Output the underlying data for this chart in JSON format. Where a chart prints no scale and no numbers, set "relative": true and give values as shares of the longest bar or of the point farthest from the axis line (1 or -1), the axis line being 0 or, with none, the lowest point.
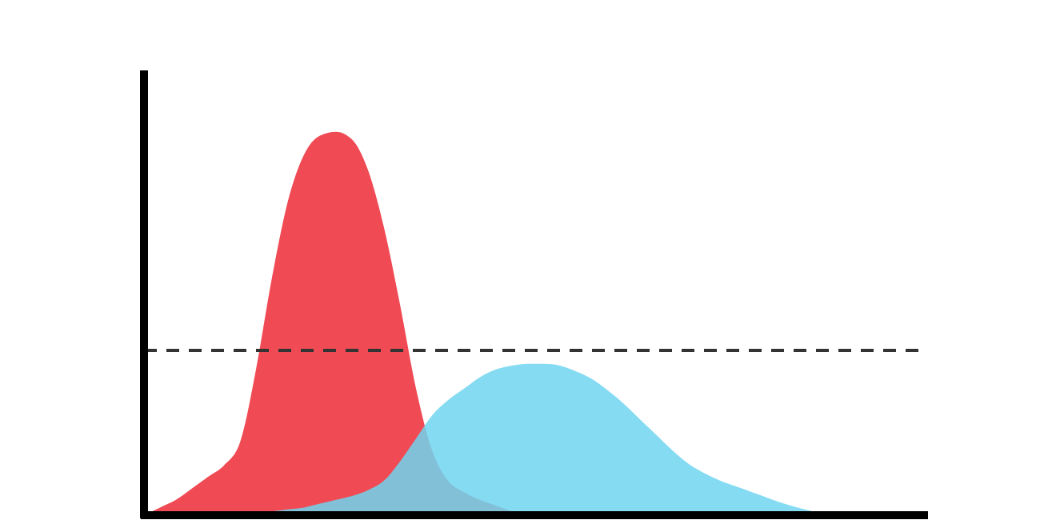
{
  "chart_data": {
    "type": "area",
    "relative": true,
    "categories": [
      null,
      null,
      null,
      null,
      null,
      null,
      null,
      null,
      null,
      null,
      null,
      null,
      null,
      null,
      null,
      null,
      null,
      null,
      null,
      null,
      null,
      null,
      null,
      null,
      null,
      null,
      null,
      null,
      null,
      null,
      null,
      null,
      null,
      null,
      null,
      null,
      null,
      null,
      null,
      null,
      null,
      null,
      null,
      null,
      null,
      null,
      null,
      null,
      null,
      null
    ],
    "series": [
      {
        "color": "#f04b55",
        "values": [
          0,
          0.02,
          0.04,
          0.07,
          0.1,
          0.13,
          0.19,
          0.38,
          0.62,
          0.82,
          0.94,
          0.99,
          1,
          0.98,
          0.9,
          0.75,
          0.55,
          0.33,
          0.17,
          0.09,
          0.06,
          0.04,
          0.025,
          0.01,
          0,
          0,
          0,
          0,
          0,
          0,
          0,
          0,
          0,
          0,
          0,
          0,
          0,
          0,
          0,
          0,
          0,
          0,
          0,
          0,
          0,
          0,
          0,
          0,
          0,
          0
        ]
      },
      {
        "color": "#6fd5f0",
        "values": [
          0,
          0,
          0,
          0,
          0,
          0,
          0,
          0.005,
          0.01,
          0.015,
          0.02,
          0.03,
          0.04,
          0.05,
          0.065,
          0.09,
          0.14,
          0.2,
          0.26,
          0.3,
          0.33,
          0.36,
          0.38,
          0.39,
          0.395,
          0.395,
          0.39,
          0.375,
          0.355,
          0.325,
          0.29,
          0.25,
          0.21,
          0.17,
          0.135,
          0.11,
          0.09,
          0.075,
          0.06,
          0.045,
          0.03,
          0.018,
          0.008,
          0.002,
          0,
          0,
          0,
          0,
          0,
          0
        ]
      }
    ],
    "ref_lines": [
      {
        "axis": "y",
        "value": 0.43,
        "line_style": "dashed",
        "color": "#333333"
      }
    ]
  }
}
